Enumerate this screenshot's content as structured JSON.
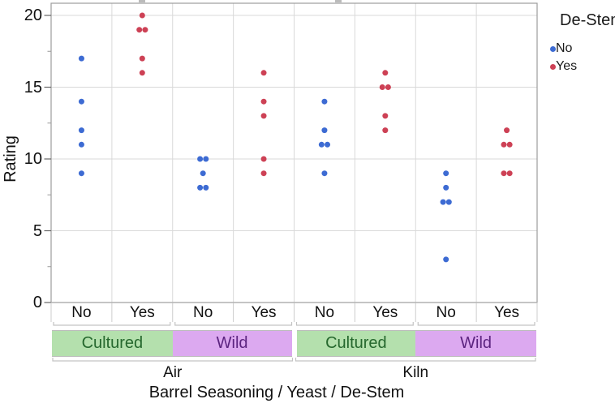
{
  "chart_data": {
    "type": "scatter",
    "title": "",
    "ylabel": "Rating",
    "xlabel": "Barrel Seasoning / Yeast / De-Stem",
    "ylim": [
      0,
      20
    ],
    "yticks": [
      0,
      5,
      10,
      15,
      20
    ],
    "yminorticks": [
      2.5,
      7.5,
      12.5,
      17.5
    ],
    "grid": true,
    "point_radius_hint": "small filled circles, duplicates jittered side-by-side",
    "legend": {
      "title": "De-Stem",
      "position": "right",
      "items": [
        {
          "label": "No",
          "color": "#3D6BD3"
        },
        {
          "label": "Yes",
          "color": "#CD4155"
        }
      ]
    },
    "x_hierarchy": {
      "levels": [
        "Barrel Seasoning",
        "Yeast",
        "De-Stem"
      ],
      "barrel_groups": [
        {
          "label": "Air"
        },
        {
          "label": "Kiln"
        }
      ],
      "yeast_groups": [
        {
          "label": "Cultured",
          "bg": "#B4E0AD",
          "fg": "#26682E"
        },
        {
          "label": "Wild",
          "bg": "#DCA9F0",
          "fg": "#5C2480"
        }
      ]
    },
    "series": [
      {
        "barrel": "Air",
        "yeast": "Cultured",
        "destem": "No",
        "values": [
          17,
          14,
          12,
          11,
          9
        ]
      },
      {
        "barrel": "Air",
        "yeast": "Cultured",
        "destem": "Yes",
        "values": [
          20,
          19,
          19,
          17,
          16
        ]
      },
      {
        "barrel": "Air",
        "yeast": "Wild",
        "destem": "No",
        "values": [
          10,
          10,
          9,
          8,
          8
        ]
      },
      {
        "barrel": "Air",
        "yeast": "Wild",
        "destem": "Yes",
        "values": [
          16,
          14,
          13,
          10,
          9
        ]
      },
      {
        "barrel": "Kiln",
        "yeast": "Cultured",
        "destem": "No",
        "values": [
          14,
          12,
          11,
          11,
          9
        ]
      },
      {
        "barrel": "Kiln",
        "yeast": "Cultured",
        "destem": "Yes",
        "values": [
          16,
          15,
          15,
          13,
          12
        ]
      },
      {
        "barrel": "Kiln",
        "yeast": "Wild",
        "destem": "No",
        "values": [
          9,
          8,
          7,
          7,
          3
        ]
      },
      {
        "barrel": "Kiln",
        "yeast": "Wild",
        "destem": "Yes",
        "values": [
          12,
          11,
          11,
          9,
          9
        ]
      }
    ]
  }
}
